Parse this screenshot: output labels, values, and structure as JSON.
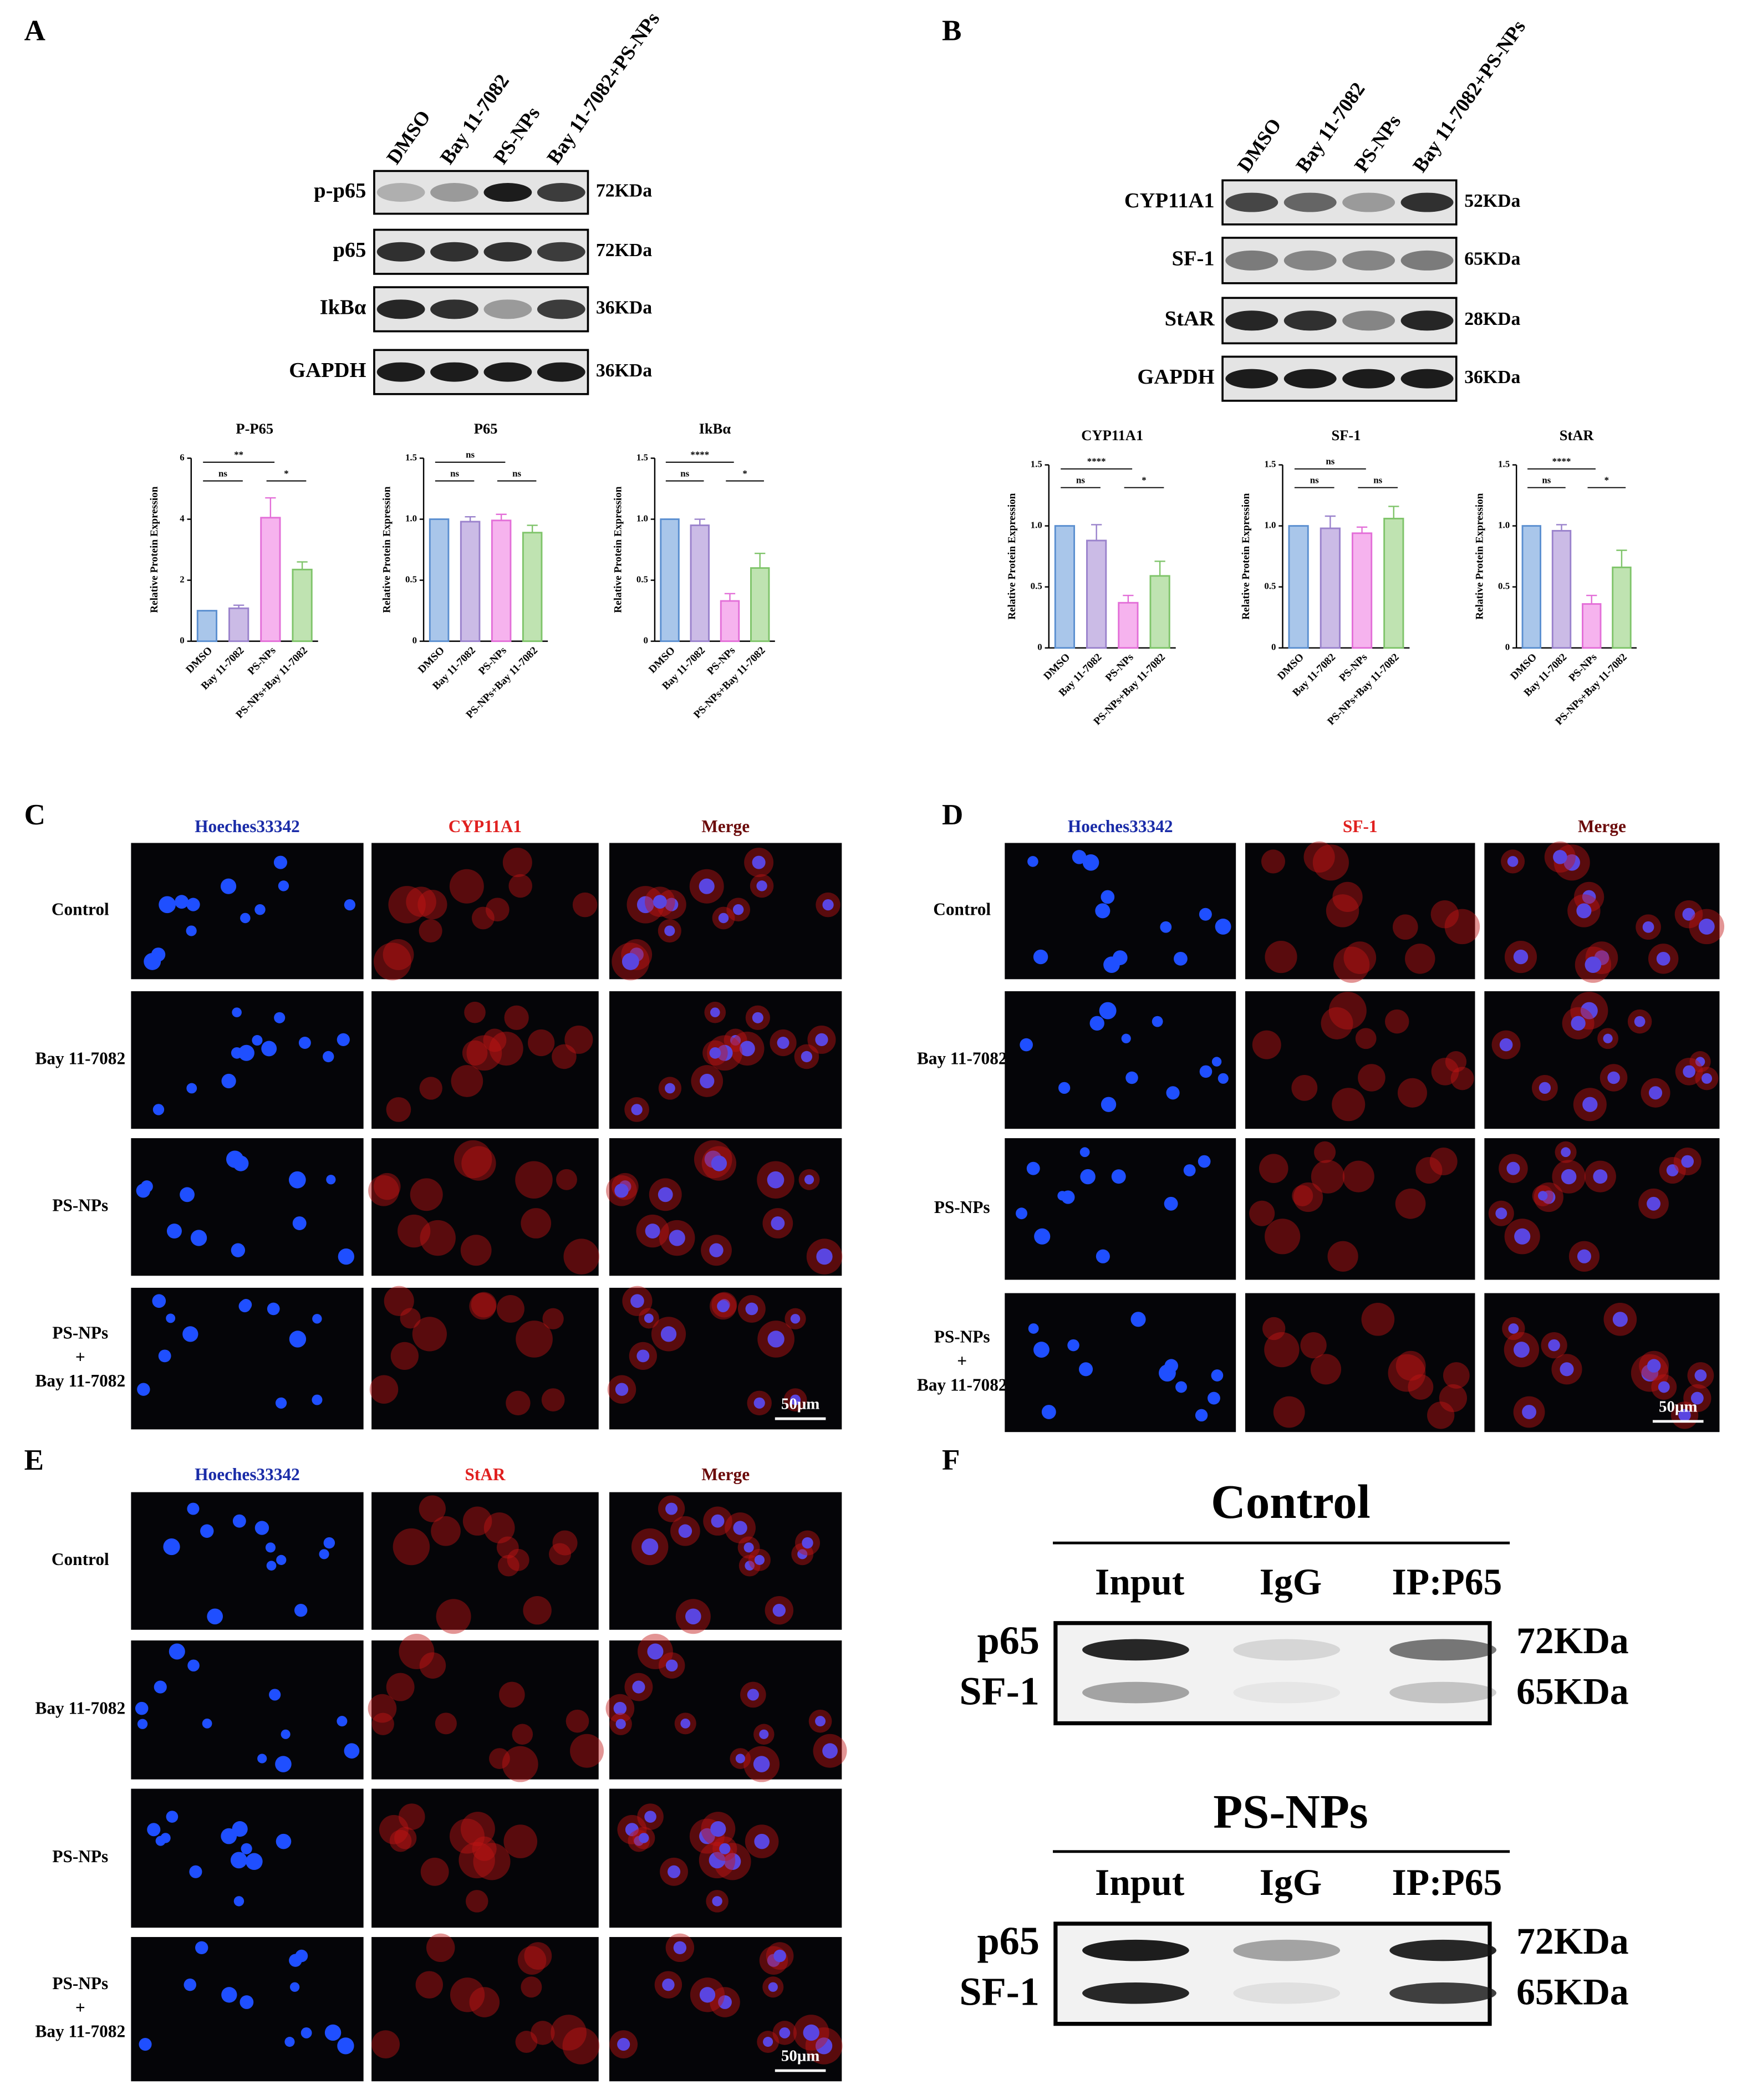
{
  "panel_labels": [
    "A",
    "B",
    "C",
    "D",
    "E",
    "F"
  ],
  "blot_a": {
    "lanes": [
      "DMSO",
      "Bay 11-7082",
      "PS-NPs",
      "Bay 11-7082+PS-NPs"
    ],
    "rows": [
      {
        "protein": "p-p65",
        "size": "72KDa"
      },
      {
        "protein": "p65",
        "size": "72KDa"
      },
      {
        "protein": "IkBα",
        "size": "36KDa"
      },
      {
        "protein": "GAPDH",
        "size": "36KDa"
      }
    ]
  },
  "blot_b": {
    "lanes": [
      "DMSO",
      "Bay 11-7082",
      "PS-NPs",
      "Bay 11-7082+PS-NPs"
    ],
    "rows": [
      {
        "protein": "CYP11A1",
        "size": "52KDa"
      },
      {
        "protein": "SF-1",
        "size": "65KDa"
      },
      {
        "protein": "StAR",
        "size": "28KDa"
      },
      {
        "protein": "GAPDH",
        "size": "36KDa"
      }
    ]
  },
  "chart_data": [
    {
      "type": "bar",
      "title": "P-P65",
      "ylabel": "Relative Protein Expression",
      "categories": [
        "DMSO",
        "Bay 11-7082",
        "PS-NPs",
        "PS-NPs+Bay 11-7082"
      ],
      "values": [
        1,
        1.08,
        4.05,
        2.35
      ],
      "errors": [
        0,
        0.1,
        0.65,
        0.25
      ],
      "colors": [
        "#a9c6ea",
        "#cbbbe6",
        "#f6b3ee",
        "#bfe3b1"
      ],
      "edge_colors": [
        "#5b8fd0",
        "#9a82cc",
        "#e36fd8",
        "#7fc46a"
      ],
      "ylim": [
        0,
        6
      ],
      "yticks": [
        0,
        2,
        4,
        6
      ],
      "annotations": [
        {
          "text": "ns"
        },
        {
          "text": "**"
        },
        {
          "text": "*"
        }
      ]
    },
    {
      "type": "bar",
      "title": "P65",
      "ylabel": "Relative Protein Expression",
      "categories": [
        "DMSO",
        "Bay 11-7082",
        "PS-NPs",
        "PS-NPs+Bay 11-7082"
      ],
      "values": [
        1,
        0.98,
        0.99,
        0.89
      ],
      "errors": [
        0,
        0.04,
        0.05,
        0.06
      ],
      "colors": [
        "#a9c6ea",
        "#cbbbe6",
        "#f6b3ee",
        "#bfe3b1"
      ],
      "edge_colors": [
        "#5b8fd0",
        "#9a82cc",
        "#e36fd8",
        "#7fc46a"
      ],
      "ylim": [
        0,
        1.5
      ],
      "yticks": [
        0,
        0.5,
        {
          "value": 1,
          "label": "1.0"
        },
        1.5
      ],
      "annotations": [
        {
          "text": "ns"
        },
        {
          "text": "ns"
        },
        {
          "text": "ns"
        }
      ]
    },
    {
      "type": "bar",
      "title": "IkBα",
      "ylabel": "Relative Protein Expression",
      "categories": [
        "DMSO",
        "Bay 11-7082",
        "PS-NPs",
        "PS-NPs+Bay 11-7082"
      ],
      "values": [
        1,
        0.95,
        0.33,
        0.6
      ],
      "errors": [
        0,
        0.05,
        0.06,
        0.12
      ],
      "colors": [
        "#a9c6ea",
        "#cbbbe6",
        "#f6b3ee",
        "#bfe3b1"
      ],
      "edge_colors": [
        "#5b8fd0",
        "#9a82cc",
        "#e36fd8",
        "#7fc46a"
      ],
      "ylim": [
        0,
        1.5
      ],
      "yticks": [
        0,
        0.5,
        {
          "value": 1,
          "label": "1.0"
        },
        1.5
      ],
      "annotations": [
        {
          "text": "ns"
        },
        {
          "text": "****"
        },
        {
          "text": "*"
        }
      ]
    },
    {
      "type": "bar",
      "title": "CYP11A1",
      "ylabel": "Relative Protein Expression",
      "categories": [
        "DMSO",
        "Bay 11-7082",
        "PS-NPs",
        "PS-NPs+Bay 11-7082"
      ],
      "values": [
        1,
        0.88,
        0.37,
        0.59
      ],
      "errors": [
        0,
        0.13,
        0.06,
        0.12
      ],
      "colors": [
        "#a9c6ea",
        "#cbbbe6",
        "#f6b3ee",
        "#bfe3b1"
      ],
      "edge_colors": [
        "#5b8fd0",
        "#9a82cc",
        "#e36fd8",
        "#7fc46a"
      ],
      "ylim": [
        0,
        1.5
      ],
      "yticks": [
        0,
        0.5,
        {
          "value": 1,
          "label": "1.0"
        },
        1.5
      ],
      "annotations": [
        {
          "text": "ns"
        },
        {
          "text": "****"
        },
        {
          "text": "*"
        }
      ]
    },
    {
      "type": "bar",
      "title": "SF-1",
      "ylabel": "Relative Protein Expression",
      "categories": [
        "DMSO",
        "Bay 11-7082",
        "PS-NPs",
        "PS-NPs+Bay 11-7082"
      ],
      "values": [
        1,
        0.98,
        0.94,
        1.06
      ],
      "errors": [
        0,
        0.1,
        0.05,
        0.1
      ],
      "colors": [
        "#a9c6ea",
        "#cbbbe6",
        "#f6b3ee",
        "#bfe3b1"
      ],
      "edge_colors": [
        "#5b8fd0",
        "#9a82cc",
        "#e36fd8",
        "#7fc46a"
      ],
      "ylim": [
        0,
        1.5
      ],
      "yticks": [
        0,
        0.5,
        {
          "value": 1,
          "label": "1.0"
        },
        1.5
      ],
      "annotations": [
        {
          "text": "ns"
        },
        {
          "text": "ns"
        },
        {
          "text": "ns"
        }
      ]
    },
    {
      "type": "bar",
      "title": "StAR",
      "ylabel": "Relative Protein Expression",
      "categories": [
        "DMSO",
        "Bay 11-7082",
        "PS-NPs",
        "PS-NPs+Bay 11-7082"
      ],
      "values": [
        1,
        0.96,
        0.36,
        0.66
      ],
      "errors": [
        0,
        0.05,
        0.07,
        0.14
      ],
      "colors": [
        "#a9c6ea",
        "#cbbbe6",
        "#f6b3ee",
        "#bfe3b1"
      ],
      "edge_colors": [
        "#5b8fd0",
        "#9a82cc",
        "#e36fd8",
        "#7fc46a"
      ],
      "ylim": [
        0,
        1.5
      ],
      "yticks": [
        0,
        0.5,
        {
          "value": 1,
          "label": "1.0"
        },
        1.5
      ],
      "annotations": [
        {
          "text": "ns"
        },
        {
          "text": "****"
        },
        {
          "text": "*"
        }
      ]
    }
  ],
  "if_c": {
    "channels": [
      "Hoeches33342",
      "CYP11A1",
      "Merge"
    ],
    "rows": [
      [
        "Control"
      ],
      [
        "Bay 11-7082"
      ],
      [
        "PS-NPs"
      ],
      [
        "PS-NPs",
        "+",
        "Bay 11-7082"
      ]
    ],
    "scale_bar": "50μm"
  },
  "if_d": {
    "channels": [
      "Hoeches33342",
      "SF-1",
      "Merge"
    ],
    "rows": [
      [
        "Control"
      ],
      [
        "Bay 11-7082"
      ],
      [
        "PS-NPs"
      ],
      [
        "PS-NPs",
        "+",
        "Bay 11-7082"
      ]
    ],
    "scale_bar": "50μm"
  },
  "if_e": {
    "channels": [
      "Hoeches33342",
      "StAR",
      "Merge"
    ],
    "rows": [
      [
        "Control"
      ],
      [
        "Bay 11-7082"
      ],
      [
        "PS-NPs"
      ],
      [
        "PS-NPs",
        "+",
        "Bay 11-7082"
      ]
    ],
    "scale_bar": "50μm"
  },
  "coip": [
    {
      "title": "Control",
      "lanes": [
        "Input",
        "IgG",
        "IP:P65"
      ],
      "proteins": [
        "p65",
        "SF-1"
      ],
      "sizes": [
        "72KDa",
        "65KDa"
      ]
    },
    {
      "title": "PS-NPs",
      "lanes": [
        "Input",
        "IgG",
        "IP:P65"
      ],
      "proteins": [
        "p65",
        "SF-1"
      ],
      "sizes": [
        "72KDa",
        "65KDa"
      ]
    }
  ]
}
